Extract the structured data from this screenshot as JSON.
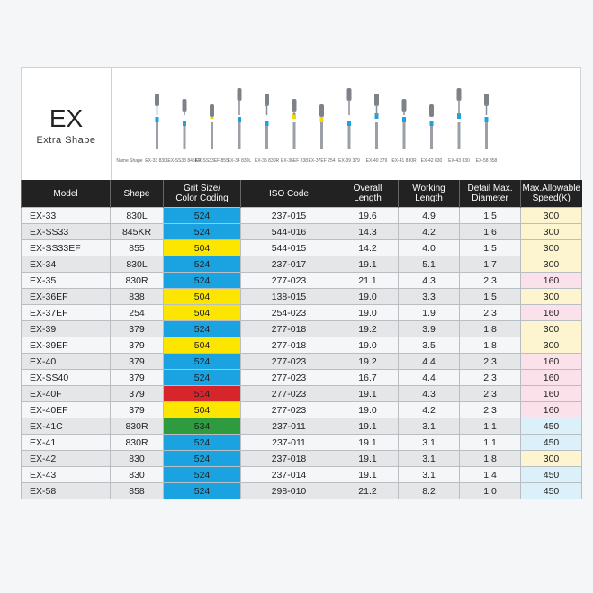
{
  "header": {
    "title": "EX",
    "subtitle": "Extra Shape"
  },
  "tools": [
    {
      "label": "Name Shape",
      "band": null
    },
    {
      "label": "EX-33 830L",
      "band": "#1aa3e0"
    },
    {
      "label": "EX-SS33 845KR",
      "band": "#1aa3e0"
    },
    {
      "label": "EX-SS33EF 855",
      "band": "#f5d800"
    },
    {
      "label": "EX-34 830L",
      "band": "#1aa3e0"
    },
    {
      "label": "EX-35 830R",
      "band": "#1aa3e0"
    },
    {
      "label": "EX-36EF 838",
      "band": "#f5d800"
    },
    {
      "label": "EX-37EF 254",
      "band": "#f5d800"
    },
    {
      "label": "EX-39 379",
      "band": "#1aa3e0"
    },
    {
      "label": "EX-40 379",
      "band": "#1aa3e0"
    },
    {
      "label": "EX-41 830R",
      "band": "#1aa3e0"
    },
    {
      "label": "EX-42 830",
      "band": "#1aa3e0"
    },
    {
      "label": "EX-43 830",
      "band": "#1aa3e0"
    },
    {
      "label": "EX-58 858",
      "band": "#1aa3e0"
    }
  ],
  "table": {
    "columns": [
      "Model",
      "Shape",
      "Grit Size/\nColor Coding",
      "ISO Code",
      "Overall\nLength",
      "Working\nLength",
      "Detail Max.\nDiameter",
      "Max.Allowable\nSpeed(K)"
    ],
    "grit_colors": {
      "524": "#1aa3e0",
      "504": "#fce600",
      "514": "#d7262b",
      "534": "#2e9b3f"
    },
    "speed_colors": {
      "300": "#fdf5cf",
      "160": "#fbe2ea",
      "450": "#dcf0f9"
    },
    "rows": [
      [
        "EX-33",
        "830L",
        "524",
        "237-015",
        "19.6",
        "4.9",
        "1.5",
        "300"
      ],
      [
        "EX-SS33",
        "845KR",
        "524",
        "544-016",
        "14.3",
        "4.2",
        "1.6",
        "300"
      ],
      [
        "EX-SS33EF",
        "855",
        "504",
        "544-015",
        "14.2",
        "4.0",
        "1.5",
        "300"
      ],
      [
        "EX-34",
        "830L",
        "524",
        "237-017",
        "19.1",
        "5.1",
        "1.7",
        "300"
      ],
      [
        "EX-35",
        "830R",
        "524",
        "277-023",
        "21.1",
        "4.3",
        "2.3",
        "160"
      ],
      [
        "EX-36EF",
        "838",
        "504",
        "138-015",
        "19.0",
        "3.3",
        "1.5",
        "300"
      ],
      [
        "EX-37EF",
        "254",
        "504",
        "254-023",
        "19.0",
        "1.9",
        "2.3",
        "160"
      ],
      [
        "EX-39",
        "379",
        "524",
        "277-018",
        "19.2",
        "3.9",
        "1.8",
        "300"
      ],
      [
        "EX-39EF",
        "379",
        "504",
        "277-018",
        "19.0",
        "3.5",
        "1.8",
        "300"
      ],
      [
        "EX-40",
        "379",
        "524",
        "277-023",
        "19.2",
        "4.4",
        "2.3",
        "160"
      ],
      [
        "EX-SS40",
        "379",
        "524",
        "277-023",
        "16.7",
        "4.4",
        "2.3",
        "160"
      ],
      [
        "EX-40F",
        "379",
        "514",
        "277-023",
        "19.1",
        "4.3",
        "2.3",
        "160"
      ],
      [
        "EX-40EF",
        "379",
        "504",
        "277-023",
        "19.0",
        "4.2",
        "2.3",
        "160"
      ],
      [
        "EX-41C",
        "830R",
        "534",
        "237-011",
        "19.1",
        "3.1",
        "1.1",
        "450"
      ],
      [
        "EX-41",
        "830R",
        "524",
        "237-011",
        "19.1",
        "3.1",
        "1.1",
        "450"
      ],
      [
        "EX-42",
        "830",
        "524",
        "237-018",
        "19.1",
        "3.1",
        "1.8",
        "300"
      ],
      [
        "EX-43",
        "830",
        "524",
        "237-014",
        "19.1",
        "3.1",
        "1.4",
        "450"
      ],
      [
        "EX-58",
        "858",
        "524",
        "298-010",
        "21.2",
        "8.2",
        "1.0",
        "450"
      ]
    ]
  }
}
